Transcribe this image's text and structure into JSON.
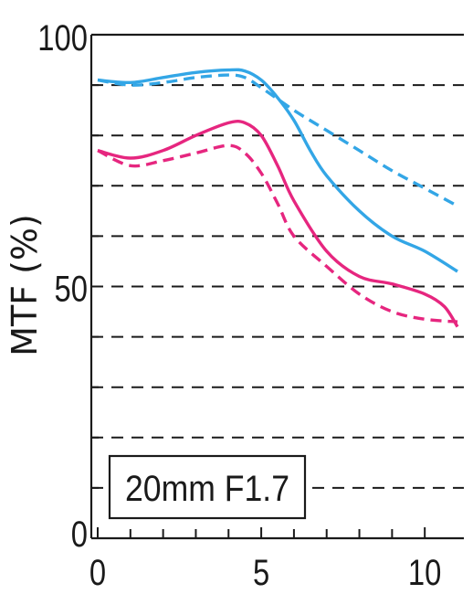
{
  "chart_data": {
    "type": "line",
    "title": "",
    "xlabel": "",
    "ylabel": "MTF (%)",
    "xlim": [
      0,
      11
    ],
    "ylim": [
      0,
      100
    ],
    "x_tick_labels": [
      "0",
      "5",
      "10"
    ],
    "y_tick_labels": [
      "0",
      "50",
      "100"
    ],
    "grid": "horizontal dashed every 10%",
    "lens_label": "20mm F1.7",
    "colors": {
      "blue": "#33a6e6",
      "magenta": "#e6267f",
      "axis": "#1a1a1a"
    },
    "series": [
      {
        "color": "blue",
        "style": "solid",
        "x": [
          0,
          1,
          2,
          3,
          4,
          4.5,
          5,
          5.5,
          6,
          6.5,
          7,
          8,
          9,
          10,
          11
        ],
        "y": [
          91,
          90.5,
          91.5,
          92.5,
          93,
          92.8,
          91,
          87.5,
          83,
          77,
          72,
          65,
          60,
          57,
          53
        ]
      },
      {
        "color": "blue",
        "style": "dashed",
        "x": [
          0,
          1,
          2,
          3,
          4,
          4.5,
          5,
          6,
          7,
          8,
          9,
          10,
          11
        ],
        "y": [
          91,
          90,
          90.5,
          91.5,
          92,
          91.5,
          89.5,
          85,
          81,
          77,
          73,
          69.5,
          66
        ]
      },
      {
        "color": "magenta",
        "style": "solid",
        "x": [
          0,
          1,
          2,
          3,
          4,
          4.5,
          5,
          5.5,
          6,
          7,
          8,
          9,
          10,
          10.6,
          11
        ],
        "y": [
          77,
          75.5,
          77,
          80,
          82.5,
          82.5,
          80,
          74,
          67,
          57,
          52,
          50.5,
          48.5,
          46,
          42
        ]
      },
      {
        "color": "magenta",
        "style": "dashed",
        "x": [
          0,
          1,
          2,
          3,
          4,
          4.5,
          5,
          5.5,
          6,
          7,
          8,
          9,
          10,
          11
        ],
        "y": [
          77,
          74,
          75,
          76.5,
          78,
          76.5,
          72.5,
          66.5,
          60,
          54,
          48.5,
          45,
          43.5,
          43
        ]
      }
    ]
  }
}
